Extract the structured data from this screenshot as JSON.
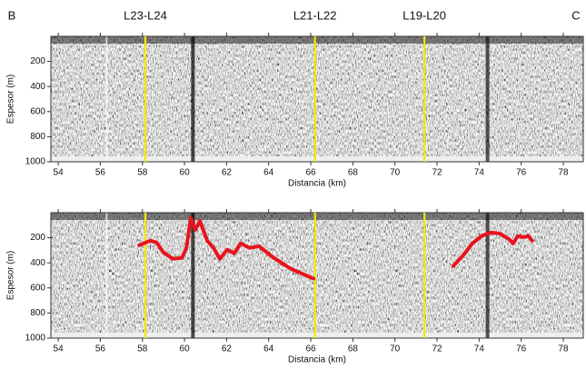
{
  "chart_data": [
    {
      "type": "profile",
      "left_label": "B",
      "right_label": "C",
      "ylabel": "Espesor (m)",
      "xlabel": "Distancia (km)",
      "xlim": [
        53.65,
        78.95
      ],
      "xticks": [
        54,
        56,
        58,
        60,
        62,
        64,
        66,
        68,
        70,
        72,
        74,
        76,
        78
      ],
      "ylim": [
        1000,
        0
      ],
      "yticks": [
        200,
        400,
        600,
        800,
        1000
      ],
      "marker_color": "#f2e600",
      "markers": [
        {
          "x": 58.14,
          "label": "L23-L24"
        },
        {
          "x": 66.2,
          "label": "L21-L22"
        },
        {
          "x": 71.4,
          "label": "L19-L20"
        }
      ]
    },
    {
      "type": "line",
      "ylabel": "Espesor (m)",
      "xlabel": "Distancia (km)",
      "xlim": [
        53.65,
        78.95
      ],
      "xticks": [
        54,
        56,
        58,
        60,
        62,
        64,
        66,
        68,
        70,
        72,
        74,
        76,
        78
      ],
      "ylim": [
        1000,
        0
      ],
      "yticks": [
        200,
        400,
        600,
        800,
        1000
      ],
      "marker_color": "#f2e600",
      "markers": [
        {
          "x": 58.14
        },
        {
          "x": 66.2
        },
        {
          "x": 71.4
        }
      ],
      "color": "#e8141c",
      "x": [
        57.85,
        58.37,
        58.67,
        59.0,
        59.45,
        59.87,
        60.09,
        60.3,
        60.52,
        60.73,
        61.08,
        61.38,
        61.68,
        62.03,
        62.37,
        62.67,
        63.1,
        63.54,
        64.18,
        65.05,
        66.13,
        null,
        72.77,
        73.25,
        73.68,
        74.11,
        74.54,
        74.97,
        75.4,
        75.62,
        75.83,
        76.09,
        76.35,
        76.52
      ],
      "values": [
        260,
        223,
        238,
        317,
        368,
        360,
        281,
        43,
        137,
        65,
        223,
        281,
        368,
        296,
        324,
        245,
        281,
        267,
        353,
        447,
        526,
        null,
        425,
        339,
        245,
        187,
        159,
        166,
        209,
        245,
        187,
        195,
        187,
        223
      ]
    }
  ]
}
